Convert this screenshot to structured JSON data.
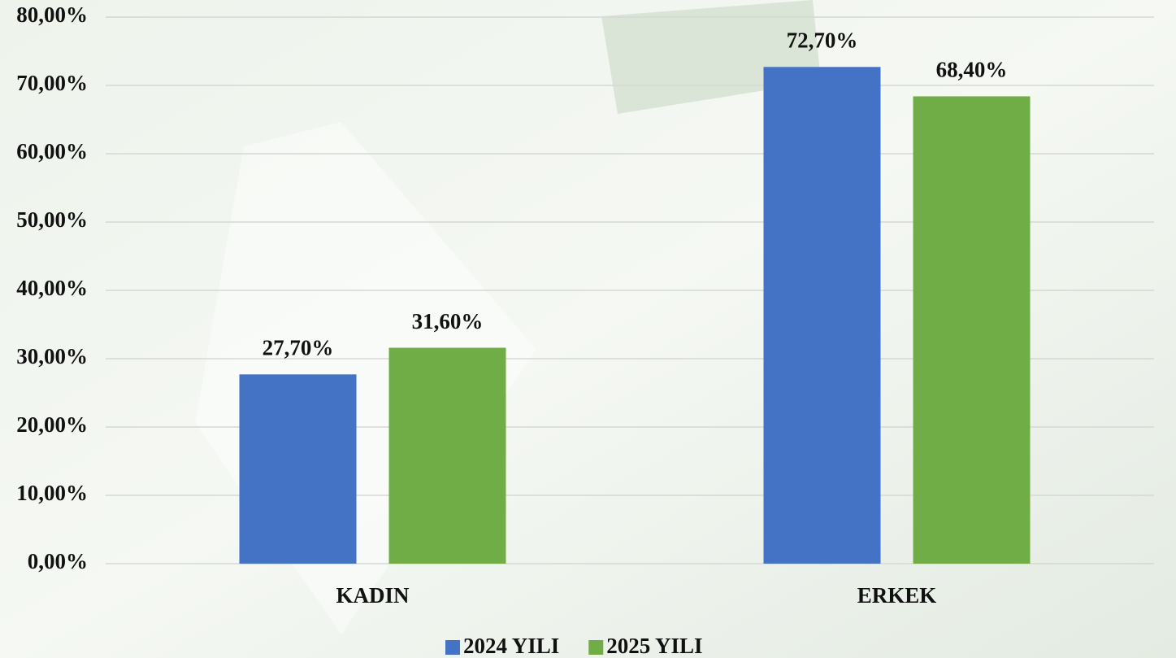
{
  "chart_data": {
    "type": "bar",
    "categories": [
      "KADIN",
      "ERKEK"
    ],
    "series": [
      {
        "name": "2024 YILI",
        "color": "#4472c4",
        "values": [
          27.7,
          72.7
        ],
        "value_labels": [
          "27,70%",
          "72,70%"
        ]
      },
      {
        "name": "2025 YILI",
        "color": "#70ad47",
        "values": [
          31.6,
          68.4
        ],
        "value_labels": [
          "31,60%",
          "68,40%"
        ]
      }
    ],
    "ylim": [
      0,
      80
    ],
    "yticks": [
      {
        "value": 0,
        "label": "0,00%"
      },
      {
        "value": 10,
        "label": "10,00%"
      },
      {
        "value": 20,
        "label": "20,00%"
      },
      {
        "value": 30,
        "label": "30,00%"
      },
      {
        "value": 40,
        "label": "40,00%"
      },
      {
        "value": 50,
        "label": "50,00%"
      },
      {
        "value": 60,
        "label": "60,00%"
      },
      {
        "value": 70,
        "label": "70,00%"
      },
      {
        "value": 80,
        "label": "80,00%"
      }
    ],
    "grid": true,
    "legend": "bottom"
  }
}
